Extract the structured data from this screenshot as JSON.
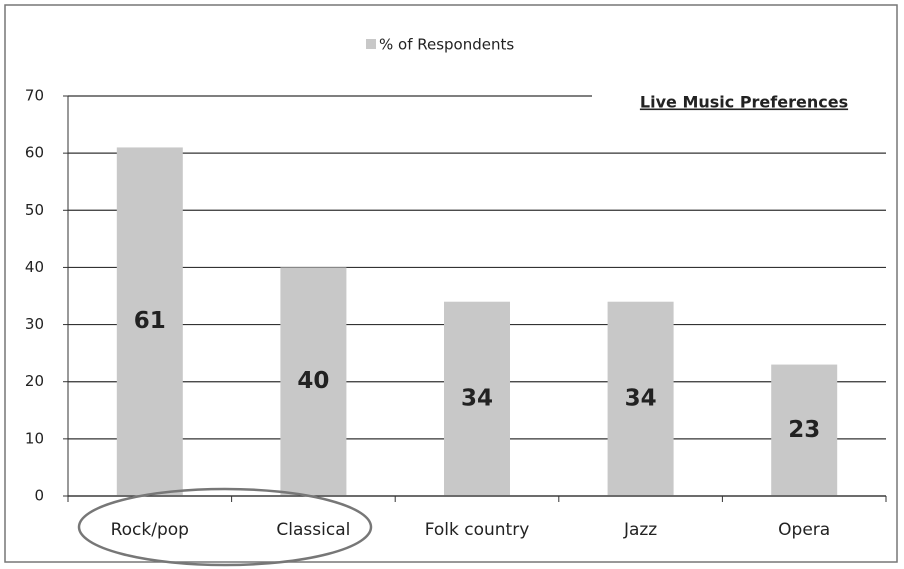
{
  "chart_data": {
    "type": "bar",
    "title": "Live Music Preferences",
    "categories": [
      "Rock/pop",
      "Classical",
      "Folk country",
      "Jazz",
      "Opera"
    ],
    "series": [
      {
        "name": "% of Respondents",
        "color": "#c8c8c8",
        "values": [
          61,
          40,
          34,
          34,
          23
        ]
      }
    ],
    "ylim": [
      0,
      70
    ],
    "yticks": [
      0,
      10,
      20,
      30,
      40,
      50,
      60,
      70
    ],
    "grid": true,
    "legend": "top"
  }
}
